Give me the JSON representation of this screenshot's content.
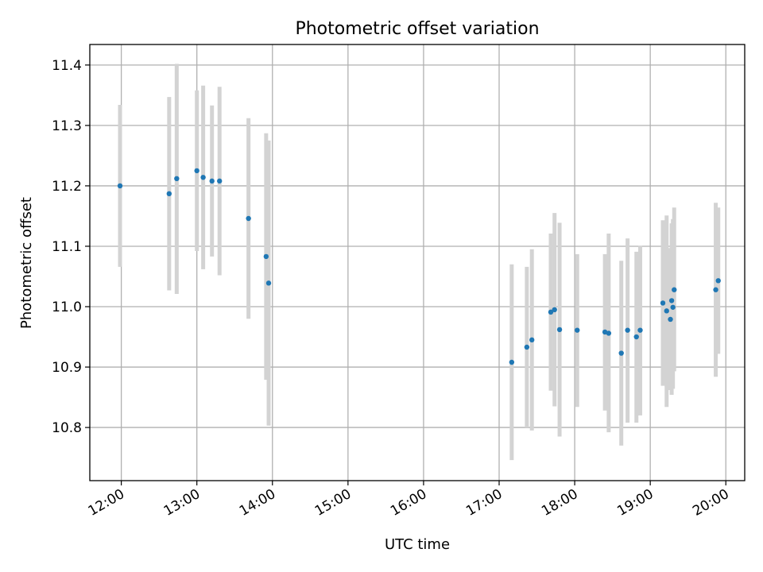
{
  "chart_data": {
    "type": "scatter",
    "title": "Photometric offset variation",
    "xlabel": "UTC time",
    "ylabel": "Photometric offset",
    "xlim": [
      "11:35",
      "20:15"
    ],
    "ylim": [
      10.712,
      11.434
    ],
    "x_ticks": [
      "12:00",
      "13:00",
      "14:00",
      "15:00",
      "16:00",
      "17:00",
      "18:00",
      "19:00",
      "20:00"
    ],
    "y_ticks": [
      "10.8",
      "10.9",
      "11.0",
      "11.1",
      "11.2",
      "11.3",
      "11.4"
    ],
    "grid": true,
    "marker_color": "#1f77b4",
    "error_color": "#d3d3d3",
    "points": [
      {
        "x": "11:59",
        "y": 11.2,
        "lo": 11.066,
        "hi": 11.334
      },
      {
        "x": "12:38",
        "y": 11.187,
        "lo": 11.027,
        "hi": 11.347
      },
      {
        "x": "12:44",
        "y": 11.212,
        "lo": 11.021,
        "hi": 11.402
      },
      {
        "x": "13:00",
        "y": 11.225,
        "lo": 11.092,
        "hi": 11.358
      },
      {
        "x": "13:05",
        "y": 11.214,
        "lo": 11.062,
        "hi": 11.366
      },
      {
        "x": "13:12",
        "y": 11.208,
        "lo": 11.083,
        "hi": 11.333
      },
      {
        "x": "13:18",
        "y": 11.208,
        "lo": 11.052,
        "hi": 11.364
      },
      {
        "x": "13:41",
        "y": 11.146,
        "lo": 10.98,
        "hi": 11.312
      },
      {
        "x": "13:55",
        "y": 11.083,
        "lo": 10.879,
        "hi": 11.287
      },
      {
        "x": "13:57",
        "y": 11.039,
        "lo": 10.803,
        "hi": 11.275
      },
      {
        "x": "17:10",
        "y": 10.908,
        "lo": 10.746,
        "hi": 11.07
      },
      {
        "x": "17:22",
        "y": 10.933,
        "lo": 10.8,
        "hi": 11.066
      },
      {
        "x": "17:26",
        "y": 10.945,
        "lo": 10.795,
        "hi": 11.095
      },
      {
        "x": "17:41",
        "y": 10.991,
        "lo": 10.861,
        "hi": 11.121
      },
      {
        "x": "17:44",
        "y": 10.995,
        "lo": 10.835,
        "hi": 11.155
      },
      {
        "x": "17:48",
        "y": 10.962,
        "lo": 10.785,
        "hi": 11.139
      },
      {
        "x": "18:02",
        "y": 10.961,
        "lo": 10.834,
        "hi": 11.087
      },
      {
        "x": "18:24",
        "y": 10.958,
        "lo": 10.828,
        "hi": 11.087
      },
      {
        "x": "18:27",
        "y": 10.956,
        "lo": 10.792,
        "hi": 11.121
      },
      {
        "x": "18:37",
        "y": 10.923,
        "lo": 10.77,
        "hi": 11.076
      },
      {
        "x": "18:42",
        "y": 10.961,
        "lo": 10.808,
        "hi": 11.113
      },
      {
        "x": "18:49",
        "y": 10.95,
        "lo": 10.808,
        "hi": 11.091
      },
      {
        "x": "18:52",
        "y": 10.961,
        "lo": 10.82,
        "hi": 11.101
      },
      {
        "x": "19:10",
        "y": 11.006,
        "lo": 10.869,
        "hi": 11.143
      },
      {
        "x": "19:13",
        "y": 10.993,
        "lo": 10.834,
        "hi": 11.151
      },
      {
        "x": "19:16",
        "y": 10.979,
        "lo": 10.862,
        "hi": 11.097
      },
      {
        "x": "19:17",
        "y": 11.01,
        "lo": 10.854,
        "hi": 11.138
      },
      {
        "x": "19:18",
        "y": 10.999,
        "lo": 10.864,
        "hi": 11.145
      },
      {
        "x": "19:19",
        "y": 11.028,
        "lo": 10.893,
        "hi": 11.164
      },
      {
        "x": "19:52",
        "y": 11.028,
        "lo": 10.884,
        "hi": 11.172
      },
      {
        "x": "19:54",
        "y": 11.043,
        "lo": 10.922,
        "hi": 11.164
      }
    ]
  }
}
